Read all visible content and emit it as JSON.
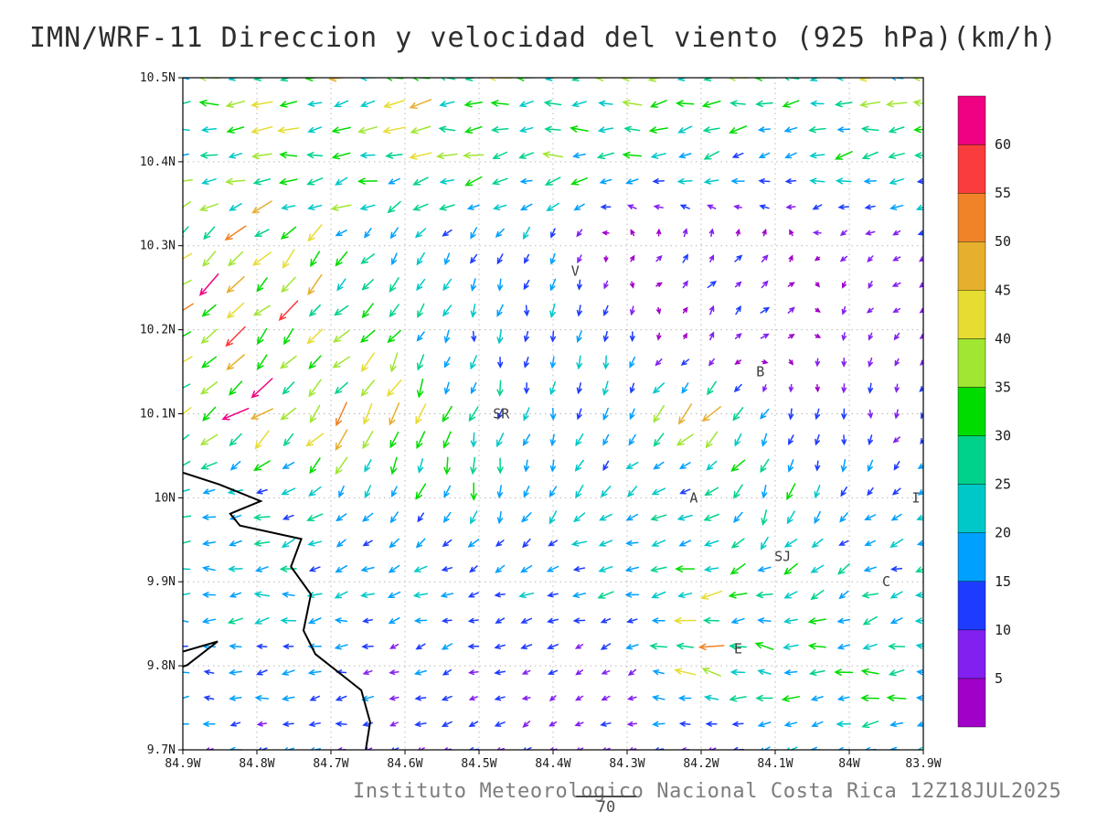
{
  "title": "IMN/WRF-11 Direccion y velocidad del viento (925 hPa)(km/h)",
  "caption": "Instituto Meteorologico Nacional Costa Rica 12Z18JUL2025",
  "footnote_number": "70",
  "chart_data": {
    "type": "vector_field",
    "render": "quiver",
    "title": "IMN/WRF-11 Direccion y velocidad del viento (925 hPa)(km/h)",
    "units": "km/h",
    "pressure_level": "925 hPa",
    "model": "IMN/WRF-11",
    "valid_time": "12Z18JUL2025",
    "grid": "dotted",
    "legend_position": "right",
    "x_axis": {
      "label": "",
      "range_deg_west": [
        84.9,
        83.9
      ],
      "ticks": [
        {
          "v": 84.9,
          "label": "84.9W"
        },
        {
          "v": 84.8,
          "label": "84.8W"
        },
        {
          "v": 84.7,
          "label": "84.7W"
        },
        {
          "v": 84.6,
          "label": "84.6W"
        },
        {
          "v": 84.5,
          "label": "84.5W"
        },
        {
          "v": 84.4,
          "label": "84.4W"
        },
        {
          "v": 84.3,
          "label": "84.3W"
        },
        {
          "v": 84.2,
          "label": "84.2W"
        },
        {
          "v": 84.1,
          "label": "84.1W"
        },
        {
          "v": 84.0,
          "label": "84W"
        },
        {
          "v": 83.9,
          "label": "83.9W"
        }
      ]
    },
    "y_axis": {
      "label": "",
      "range_deg_north": [
        9.7,
        10.5
      ],
      "ticks": [
        {
          "v": 10.5,
          "label": "10.5N"
        },
        {
          "v": 10.4,
          "label": "10.4N"
        },
        {
          "v": 10.3,
          "label": "10.3N"
        },
        {
          "v": 10.2,
          "label": "10.2N"
        },
        {
          "v": 10.1,
          "label": "10.1N"
        },
        {
          "v": 10.0,
          "label": "10N"
        },
        {
          "v": 9.9,
          "label": "9.9N"
        },
        {
          "v": 9.8,
          "label": "9.8N"
        },
        {
          "v": 9.7,
          "label": "9.7N"
        }
      ]
    },
    "colorbar": {
      "levels": [
        5,
        10,
        15,
        20,
        25,
        30,
        35,
        40,
        45,
        50,
        55,
        60
      ],
      "colors": [
        "#A000C8",
        "#8220F0",
        "#1E3CFF",
        "#00A0FF",
        "#00C8C8",
        "#00D28C",
        "#00DC00",
        "#A0E632",
        "#E6DC32",
        "#E6AF2D",
        "#F08228",
        "#FA3C3C",
        "#F00082"
      ]
    },
    "stations": [
      {
        "label": "V",
        "lon_w": 84.37,
        "lat_n": 10.27
      },
      {
        "label": "B",
        "lon_w": 84.12,
        "lat_n": 10.15
      },
      {
        "label": "SR",
        "lon_w": 84.47,
        "lat_n": 10.1
      },
      {
        "label": "A",
        "lon_w": 84.21,
        "lat_n": 10.0
      },
      {
        "label": "I",
        "lon_w": 83.91,
        "lat_n": 10.0
      },
      {
        "label": "SJ",
        "lon_w": 84.09,
        "lat_n": 9.93
      },
      {
        "label": "C",
        "lon_w": 83.95,
        "lat_n": 9.9
      },
      {
        "label": "E",
        "lon_w": 84.15,
        "lat_n": 9.82
      }
    ],
    "coastline_deg": {
      "main": [
        [
          84.9,
          10.03
        ],
        [
          84.851,
          10.016
        ],
        [
          84.795,
          9.996
        ],
        [
          84.836,
          9.981
        ],
        [
          84.823,
          9.967
        ],
        [
          84.74,
          9.951
        ],
        [
          84.754,
          9.918
        ],
        [
          84.727,
          9.885
        ],
        [
          84.737,
          9.842
        ],
        [
          84.721,
          9.814
        ],
        [
          84.659,
          9.771
        ],
        [
          84.647,
          9.733
        ],
        [
          84.653,
          9.7
        ]
      ],
      "islet": [
        [
          84.9,
          9.817
        ],
        [
          84.853,
          9.829
        ],
        [
          84.894,
          9.801
        ],
        [
          84.9,
          9.799
        ]
      ]
    },
    "wind_grid": {
      "note": "Coarse control field read from the plot; u positive eastward, v positive northward, km/h. Rows top-to-bottom follow lat_n.",
      "lon_w": [
        84.9,
        84.8,
        84.7,
        84.6,
        84.5,
        84.4,
        84.3,
        84.2,
        84.1,
        84.0,
        83.9
      ],
      "lat_n": [
        10.5,
        10.4,
        10.3,
        10.2,
        10.1,
        10.0,
        9.9,
        9.8,
        9.7
      ],
      "u_east_kmh": [
        [
          -30,
          -32,
          -34,
          -35,
          -33,
          -30,
          -28,
          -26,
          -26,
          -28,
          -30
        ],
        [
          -24,
          -27,
          -29,
          -30,
          -30,
          -28,
          -24,
          -22,
          -22,
          -24,
          -26
        ],
        [
          -38,
          -30,
          -20,
          -12,
          -8,
          -5,
          3,
          6,
          4,
          -4,
          -6
        ],
        [
          -30,
          -32,
          -25,
          -12,
          -2,
          -2,
          -4,
          5,
          7,
          -3,
          -6
        ],
        [
          -25,
          -38,
          -28,
          -12,
          -5,
          -3,
          -8,
          -28,
          -5,
          3,
          -5
        ],
        [
          -20,
          -18,
          -15,
          -8,
          -5,
          -8,
          -15,
          -18,
          -8,
          -10,
          -15
        ],
        [
          -20,
          -20,
          -18,
          -16,
          -15,
          -18,
          -25,
          -30,
          -20,
          -18,
          -20
        ],
        [
          -16,
          -15,
          -14,
          -12,
          -10,
          -8,
          -6,
          -40,
          -25,
          -28,
          -25
        ],
        [
          -12,
          -12,
          -11,
          -10,
          -9,
          -8,
          -8,
          -10,
          -14,
          -18,
          -22
        ]
      ],
      "v_north_kmh": [
        [
          -2,
          -2,
          -3,
          -3,
          -2,
          -2,
          -2,
          -3,
          -3,
          -3,
          -2
        ],
        [
          -4,
          -4,
          -5,
          -5,
          -4,
          -4,
          -4,
          -5,
          -5,
          -4,
          -4
        ],
        [
          -30,
          -25,
          -18,
          -15,
          -14,
          -12,
          6,
          7,
          5,
          -4,
          -3
        ],
        [
          -28,
          -30,
          -28,
          -22,
          -18,
          -16,
          -14,
          8,
          7,
          -6,
          -5
        ],
        [
          -20,
          -32,
          -30,
          -32,
          -20,
          -18,
          -16,
          -28,
          -10,
          -10,
          -8
        ],
        [
          -2,
          -5,
          -18,
          -22,
          -22,
          -18,
          -10,
          -8,
          -28,
          -12,
          -5
        ],
        [
          0,
          -2,
          -3,
          -4,
          -5,
          -3,
          -3,
          -5,
          -8,
          -10,
          -5
        ],
        [
          0,
          -2,
          -2,
          -3,
          -3,
          -4,
          -5,
          6,
          5,
          -3,
          -2
        ],
        [
          -2,
          -2,
          -3,
          -3,
          -4,
          -4,
          -3,
          -3,
          -4,
          -3,
          -3
        ]
      ]
    }
  }
}
